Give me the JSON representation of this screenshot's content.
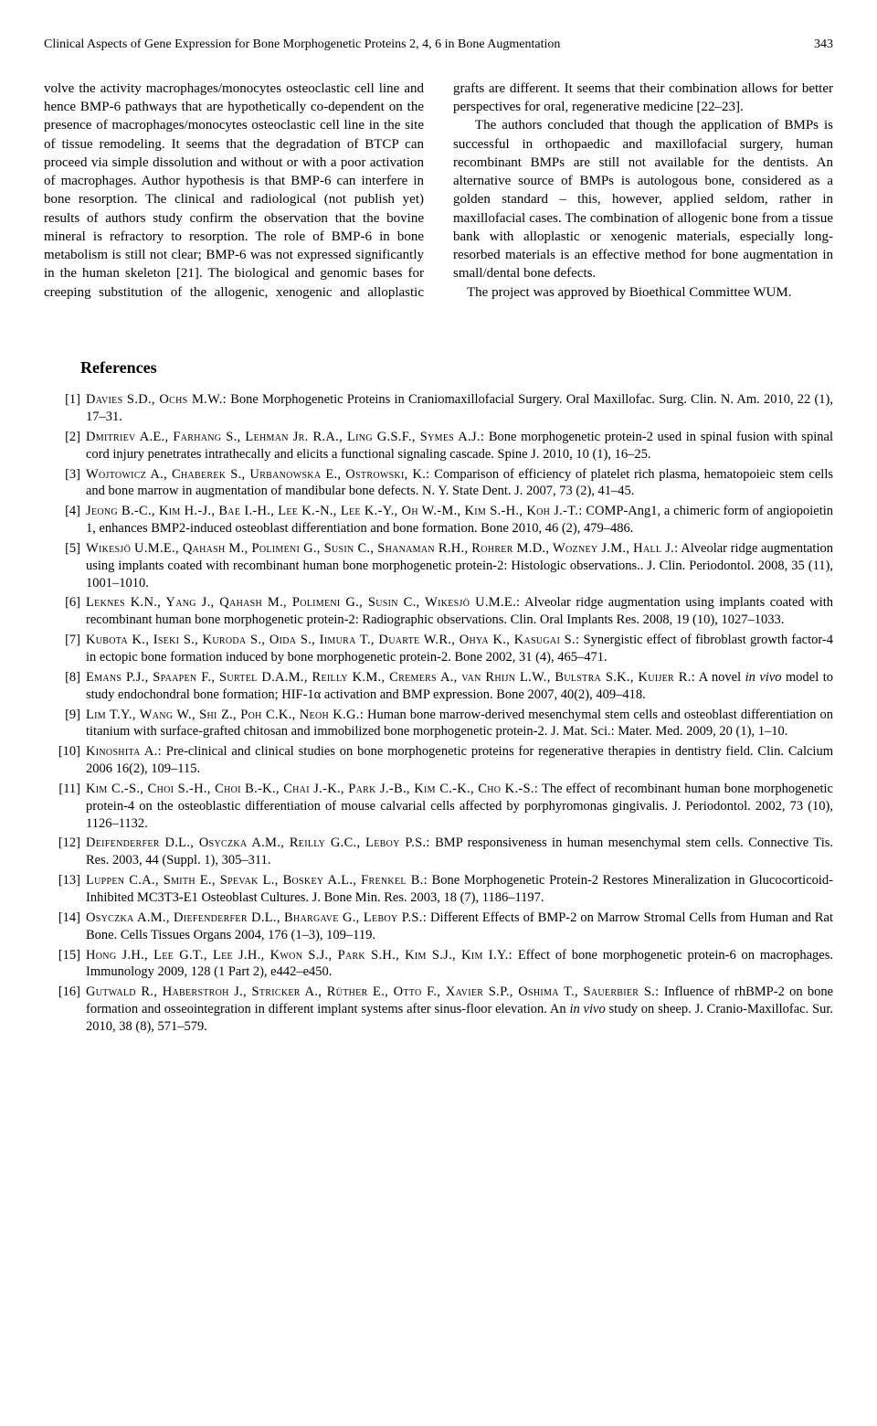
{
  "header": {
    "running_title": "Clinical Aspects of Gene Expression for Bone Morphogenetic Proteins 2, 4, 6 in Bone Augmentation",
    "page_number": "343"
  },
  "body": {
    "col_text": "volve the activity macrophages/monocytes osteoclastic cell line and hence BMP-6 pathways that are hypothetically co-dependent on the presence of macrophages/monocytes osteoclastic cell line in the site of tissue remodeling. It seems that the degradation of BTCP can proceed via simple dissolution and without or with a poor activation of macrophages. Author hypothesis is that BMP-6 can interfere in bone resorption. The clinical and radiological (not publish yet) results of authors study confirm the observation that the bovine mineral is refractory to resorption. The role of BMP-6 in bone metabolism is still not clear; BMP-6 was not expressed significantly in the human skeleton [21]. The biological and genomic bases for creeping substitution of the allogenic, xenogenic and alloplastic grafts are different. It seems that their combination allows for better perspectives for oral, regenerative medicine [22–23].",
    "para2_indent": "    The authors concluded that though the application of BMPs is successful in orthopaedic and maxillofacial surgery, human recombinant BMPs are still not available for the dentists. An alternative source of BMPs is autologous bone, considered as a golden standard – this, however, applied seldom, rather in maxillofacial cases. The combination of allogenic bone from a tissue bank with alloplastic or xenogenic materials, especially long-resorbed materials is an effective method for bone augmentation in small/dental bone defects.",
    "para3_indent": "    The project was approved by Bioethical Committee WUM."
  },
  "references": {
    "heading": "References",
    "items": [
      {
        "n": "[1]",
        "authors": "Davies S.D., Ochs M.W.:",
        "rest": " Bone Morphogenetic Proteins in Craniomaxillofacial Surgery. Oral Maxillofac. Surg. Clin. N. Am. 2010, 22 (1), 17–31."
      },
      {
        "n": "[2]",
        "authors": "Dmitriev A.E., Farhang S., Lehman Jr. R.A., Ling G.S.F., Symes A.J.:",
        "rest": " Bone morphogenetic protein-2 used in spinal fusion with spinal cord injury penetrates intrathecally and elicits a functional signaling cascade. Spine J. 2010, 10 (1), 16–25."
      },
      {
        "n": "[3]",
        "authors": "Wojtowicz A., Chaberek S., Urbanowska E., Ostrowski, K.:",
        "rest": " Comparison of efficiency of platelet rich plasma, hematopoieic stem cells and bone marrow in augmentation of mandibular bone defects. N. Y. State Dent. J. 2007, 73 (2), 41–45."
      },
      {
        "n": "[4]",
        "authors": "Jeong B.-C., Kim H.-J., Bae I.-H., Lee K.-N., Lee K.-Y., Oh W.-M., Kim S.-H., Koh J.-T.:",
        "rest": " COMP-Ang1, a chimeric form of angiopoietin 1, enhances BMP2-induced osteoblast differentiation and bone formation. Bone 2010, 46 (2), 479–486."
      },
      {
        "n": "[5]",
        "authors": "Wikesjö U.M.E., Qahash M., Polimeni G., Susin C., Shanaman R.H., Rohrer M.D., Wozney J.M., Hall J.:",
        "rest": " Alveolar ridge augmentation using implants coated with recombinant human bone morphogenetic protein-2: Histologic observations.. J. Clin. Periodontol. 2008, 35 (11), 1001–1010."
      },
      {
        "n": "[6]",
        "authors": "Leknes K.N., Yang J., Qahash M., Polimeni G., Susin C., Wikesjö U.M.E.:",
        "rest": " Alveolar ridge augmentation using implants coated with recombinant human bone morphogenetic protein-2: Radiographic observations. Clin. Oral Implants Res. 2008, 19 (10), 1027–1033."
      },
      {
        "n": "[7]",
        "authors": "Kubota K., Iseki S., Kuroda S., Oida S., Iimura T., Duarte W.R., Ohya K., Kasugai S.:",
        "rest": " Synergistic effect of fibroblast growth factor-4 in ectopic bone formation induced by bone morphogenetic protein-2. Bone 2002, 31 (4), 465–471."
      },
      {
        "n": "[8]",
        "authors": "Emans P.J., Spaapen F., Surtel D.A.M., Reilly K.M., Cremers A., van Rhijn L.W., Bulstra S.K., Kuijer R.:",
        "rest": " A novel ",
        "ital": "in vivo",
        "rest2": " model to study endochondral bone formation; HIF-1α activation and BMP expression. Bone 2007, 40(2), 409–418."
      },
      {
        "n": "[9]",
        "authors": "Lim T.Y., Wang W., Shi Z., Poh C.K., Neoh K.G.:",
        "rest": " Human bone marrow-derived mesenchymal stem cells and osteoblast differentiation on titanium with surface-grafted chitosan and immobilized bone morphogenetic protein-2. J. Mat. Sci.: Mater. Med. 2009, 20 (1), 1–10."
      },
      {
        "n": "[10]",
        "authors": "Kinoshita A.:",
        "rest": " Pre-clinical and clinical studies on bone morphogenetic proteins for regenerative therapies in dentistry field. Clin. Calcium 2006 16(2), 109–115."
      },
      {
        "n": "[11]",
        "authors": "Kim C.-S., Choi S.-H., Choi B.-K., Chai J.-K., Park J.-B., Kim C.-K., Cho K.-S.:",
        "rest": " The effect of recombinant human bone morphogenetic protein-4 on the osteoblastic differentiation of mouse calvarial cells affected by porphyromonas gingivalis. J. Periodontol. 2002, 73 (10), 1126–1132."
      },
      {
        "n": "[12]",
        "authors": "Deifenderfer D.L., Osyczka A.M., Reilly G.C., Leboy P.S.:",
        "rest": " BMP responsiveness in human mesenchymal stem cells. Connective Tis. Res. 2003, 44 (Suppl. 1), 305–311."
      },
      {
        "n": "[13]",
        "authors": "Luppen C.A., Smith E., Spevak L., Boskey A.L., Frenkel B.:",
        "rest": " Bone Morphogenetic Protein-2 Restores Mineralization in Glucocorticoid-Inhibited MC3T3-E1 Osteoblast Cultures. J. Bone Min. Res. 2003, 18 (7), 1186–1197."
      },
      {
        "n": "[14]",
        "authors": "Osyczka A.M., Diefenderfer D.L., Bhargave G., Leboy P.S.:",
        "rest": " Different Effects of BMP-2 on Marrow Stromal Cells from Human and Rat Bone. Cells Tissues Organs 2004, 176 (1–3), 109–119."
      },
      {
        "n": "[15]",
        "authors": "Hong J.H., Lee G.T., Lee J.H., Kwon S.J., Park S.H., Kim S.J., Kim I.Y.:",
        "rest": " Effect of bone morphogenetic protein-6 on macrophages. Immunology 2009, 128 (1 Part 2), e442–e450."
      },
      {
        "n": "[16]",
        "authors": "Gutwald R., Haberstroh J., Stricker A., Rüther E., Otto F., Xavier S.P., Oshima T., Sauerbier S.:",
        "rest": " Influence of rhBMP-2 on bone formation and osseointegration in different implant systems after sinus-floor elevation. An ",
        "ital": "in vivo",
        "rest2": " study on sheep. J. Cranio-Maxillofac. Sur. 2010, 38 (8), 571–579."
      }
    ]
  }
}
